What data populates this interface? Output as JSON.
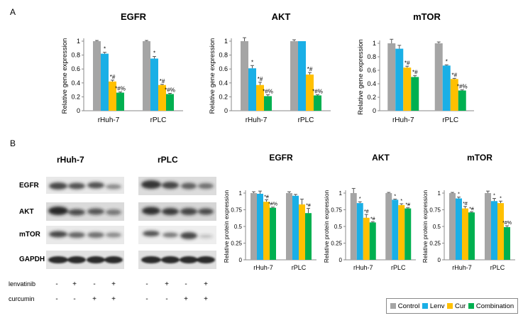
{
  "panels": {
    "a_label": "A",
    "b_label": "B"
  },
  "colors": {
    "Control": "#a5a5a5",
    "Lenv": "#1aafe6",
    "Cur": "#ffc000",
    "Combination": "#00b050"
  },
  "blot": {
    "group_titles": [
      "rHuh-7",
      "rPLC"
    ],
    "row_labels": [
      "EGFR",
      "AKT",
      "mTOR",
      "GAPDH"
    ],
    "treatments": [
      {
        "name": "lenvatinib",
        "signs": [
          "-",
          "+",
          "-",
          "+",
          "-",
          "+",
          "-",
          "+"
        ]
      },
      {
        "name": "curcumin",
        "signs": [
          "-",
          "-",
          "+",
          "+",
          "-",
          "-",
          "+",
          "+"
        ]
      }
    ]
  },
  "legend": {
    "items": [
      "Control",
      "Lenv",
      "Cur",
      "Combination"
    ]
  },
  "chart_data": [
    {
      "type": "bar",
      "title": "EGFR",
      "ylabel": "Relative gene expression",
      "xlabel": "",
      "ylim": [
        0,
        1
      ],
      "yticks": [
        "0",
        "0.2",
        "0.4",
        "0.6",
        "0.8",
        "1"
      ],
      "categories": [
        "rHuh-7",
        "rPLC"
      ],
      "series": [
        {
          "name": "Control",
          "values": [
            1.0,
            1.0
          ],
          "errors": [
            0.01,
            0.01
          ],
          "annotations": [
            "",
            ""
          ]
        },
        {
          "name": "Lenv",
          "values": [
            0.82,
            0.75
          ],
          "errors": [
            0.02,
            0.03
          ],
          "annotations": [
            "*",
            "*"
          ]
        },
        {
          "name": "Cur",
          "values": [
            0.42,
            0.37
          ],
          "errors": [
            0.02,
            0.01
          ],
          "annotations": [
            "*#",
            "*#"
          ]
        },
        {
          "name": "Combination",
          "values": [
            0.26,
            0.24
          ],
          "errors": [
            0.01,
            0.01
          ],
          "annotations": [
            "*#%",
            "*#%"
          ]
        }
      ]
    },
    {
      "type": "bar",
      "title": "AKT",
      "ylabel": "Relative gene expression",
      "xlabel": "",
      "ylim": [
        0,
        1
      ],
      "yticks": [
        "0",
        "0.2",
        "0.4",
        "0.6",
        "0.8",
        "1"
      ],
      "categories": [
        "rHuh-7",
        "rPLC"
      ],
      "series": [
        {
          "name": "Control",
          "values": [
            1.0,
            1.0
          ],
          "errors": [
            0.05,
            0.02
          ],
          "annotations": [
            "",
            ""
          ]
        },
        {
          "name": "Lenv",
          "values": [
            0.61,
            1.0
          ],
          "errors": [
            0.04,
            0.0
          ],
          "annotations": [
            "*",
            ""
          ]
        },
        {
          "name": "Cur",
          "values": [
            0.37,
            0.52
          ],
          "errors": [
            0.04,
            0.03
          ],
          "annotations": [
            "*#",
            "*#"
          ]
        },
        {
          "name": "Combination",
          "values": [
            0.21,
            0.22
          ],
          "errors": [
            0.02,
            0.01
          ],
          "annotations": [
            "*#%",
            "*#%"
          ]
        }
      ]
    },
    {
      "type": "bar",
      "title": "mTOR",
      "ylabel": "Relative gene expression",
      "xlabel": "",
      "ylim": [
        0,
        1
      ],
      "yticks": [
        "0",
        "0.2",
        "0.4",
        "0.6",
        "0.8",
        "1"
      ],
      "categories": [
        "rHuh-7",
        "rPLC"
      ],
      "series": [
        {
          "name": "Control",
          "values": [
            1.0,
            1.0
          ],
          "errors": [
            0.06,
            0.02
          ],
          "annotations": [
            "",
            ""
          ]
        },
        {
          "name": "Lenv",
          "values": [
            0.92,
            0.67
          ],
          "errors": [
            0.05,
            0.01
          ],
          "annotations": [
            "",
            "*"
          ]
        },
        {
          "name": "Cur",
          "values": [
            0.64,
            0.47
          ],
          "errors": [
            0.02,
            0.01
          ],
          "annotations": [
            "*#",
            "*#"
          ]
        },
        {
          "name": "Combination",
          "values": [
            0.5,
            0.3
          ],
          "errors": [
            0.02,
            0.01
          ],
          "annotations": [
            "*#",
            "*#%"
          ]
        }
      ]
    },
    {
      "type": "bar",
      "title": "EGFR",
      "ylabel": "Relative protein expression",
      "xlabel": "",
      "ylim": [
        0,
        1
      ],
      "yticks": [
        "0",
        "0.25",
        "0.5",
        "0.75",
        "1"
      ],
      "categories": [
        "rHuh-7",
        "rPLC"
      ],
      "series": [
        {
          "name": "Control",
          "values": [
            1.0,
            1.0
          ],
          "errors": [
            0.02,
            0.02
          ],
          "annotations": [
            "",
            ""
          ]
        },
        {
          "name": "Lenv",
          "values": [
            0.99,
            0.96
          ],
          "errors": [
            0.04,
            0.02
          ],
          "annotations": [
            "",
            ""
          ]
        },
        {
          "name": "Cur",
          "values": [
            0.87,
            0.83
          ],
          "errors": [
            0.03,
            0.08
          ],
          "annotations": [
            "*#",
            ""
          ]
        },
        {
          "name": "Combination",
          "values": [
            0.78,
            0.7
          ],
          "errors": [
            0.01,
            0.07
          ],
          "annotations": [
            "*#%",
            "*#"
          ]
        }
      ]
    },
    {
      "type": "bar",
      "title": "AKT",
      "ylabel": "Relative protein expression",
      "xlabel": "",
      "ylim": [
        0,
        1
      ],
      "yticks": [
        "0",
        "0.25",
        "0.5",
        "0.75",
        "1"
      ],
      "categories": [
        "rHuh-7",
        "rPLC"
      ],
      "series": [
        {
          "name": "Control",
          "values": [
            1.0,
            1.0
          ],
          "errors": [
            0.07,
            0.01
          ],
          "annotations": [
            "",
            ""
          ]
        },
        {
          "name": "Lenv",
          "values": [
            0.85,
            0.9
          ],
          "errors": [
            0.02,
            0.01
          ],
          "annotations": [
            "*",
            "*"
          ]
        },
        {
          "name": "Cur",
          "values": [
            0.63,
            0.82
          ],
          "errors": [
            0.05,
            0.02
          ],
          "annotations": [
            "*#",
            "*"
          ]
        },
        {
          "name": "Combination",
          "values": [
            0.56,
            0.77
          ],
          "errors": [
            0.01,
            0.01
          ],
          "annotations": [
            "*#",
            "*#"
          ]
        }
      ]
    },
    {
      "type": "bar",
      "title": "mTOR",
      "ylabel": "Relative protein expression",
      "xlabel": "",
      "ylim": [
        0,
        1
      ],
      "yticks": [
        "0",
        "0.25",
        "0.5",
        "0.75",
        "1"
      ],
      "categories": [
        "rHuh-7",
        "rPLC"
      ],
      "series": [
        {
          "name": "Control",
          "values": [
            1.0,
            1.0
          ],
          "errors": [
            0.01,
            0.03
          ],
          "annotations": [
            "",
            ""
          ]
        },
        {
          "name": "Lenv",
          "values": [
            0.92,
            0.88
          ],
          "errors": [
            0.02,
            0.04
          ],
          "annotations": [
            "*",
            "*"
          ]
        },
        {
          "name": "Cur",
          "values": [
            0.77,
            0.85
          ],
          "errors": [
            0.03,
            0.03
          ],
          "annotations": [
            "*#",
            "*"
          ]
        },
        {
          "name": "Combination",
          "values": [
            0.71,
            0.49
          ],
          "errors": [
            0.01,
            0.02
          ],
          "annotations": [
            "*#",
            "*#%"
          ]
        }
      ]
    }
  ]
}
